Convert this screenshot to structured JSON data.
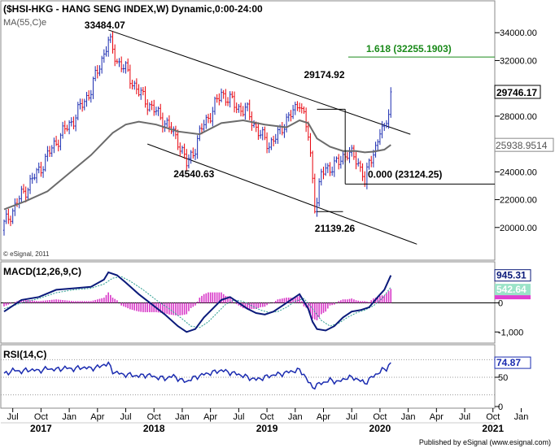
{
  "chart_data": {
    "type": "candlestick",
    "symbol_title": "($HSI-HKG - HANG SENG INDEX,W) Dynamic,0:00-24:00",
    "ma_label": "MA(55,C)e",
    "copyright": "© eSignal, 2011",
    "publisher": "Published by eSignal (www.esignal.com)",
    "price_axis": {
      "min": 18000,
      "max": 36000,
      "ticks": [
        {
          "value": 20000,
          "label": "20000.00"
        },
        {
          "value": 22000,
          "label": "22000.00"
        },
        {
          "value": 24000,
          "label": "24000.00"
        },
        {
          "value": 28000,
          "label": "28000.00"
        },
        {
          "value": 32000,
          "label": "32000.00"
        },
        {
          "value": 34000,
          "label": "34000.00"
        }
      ],
      "current_price": {
        "value": 29746.17,
        "label": "29746.17"
      },
      "ma_value": {
        "value": 25938.9514,
        "label": "25938.9514"
      }
    },
    "x_axis": {
      "months": [
        "Jul",
        "Oct",
        "Jan",
        "Apr",
        "Jul",
        "Oct",
        "Jan",
        "Apr",
        "Jul",
        "Oct",
        "Jan",
        "Apr",
        "Jul",
        "Oct",
        "Jan",
        "Apr",
        "Jul",
        "Oct",
        "Jan"
      ],
      "years": [
        "2017",
        "2018",
        "2019",
        "2020",
        "2021"
      ]
    },
    "annotations": {
      "high_label": "33484.07",
      "mid_high_label": "29174.92",
      "low1_label": "24540.63",
      "low2_label": "21139.26",
      "fib_1618": {
        "value": 32255.1903,
        "label": "1.618 (32255.1903)"
      },
      "fib_0": {
        "value": 23124.25,
        "label": "0.000 (23124.25)"
      }
    },
    "price_series": [
      [
        0,
        20200,
        19800
      ],
      [
        8,
        22300
      ],
      [
        16,
        24100
      ],
      [
        24,
        26200
      ],
      [
        32,
        27800
      ],
      [
        40,
        29900
      ],
      [
        45,
        32100
      ],
      [
        48,
        33484
      ],
      [
        52,
        32000
      ],
      [
        56,
        31300
      ],
      [
        62,
        29700
      ],
      [
        68,
        28600
      ],
      [
        74,
        27600
      ],
      [
        80,
        26300
      ],
      [
        84,
        24540
      ],
      [
        88,
        25800
      ],
      [
        92,
        27500
      ],
      [
        96,
        28400
      ],
      [
        100,
        29700
      ],
      [
        104,
        29100
      ],
      [
        108,
        28600
      ],
      [
        112,
        28300
      ],
      [
        118,
        26600
      ],
      [
        122,
        26000
      ],
      [
        126,
        26600
      ],
      [
        130,
        27800
      ],
      [
        134,
        28400
      ],
      [
        136,
        29175
      ],
      [
        138,
        28000
      ],
      [
        140,
        26500
      ],
      [
        142,
        23500
      ],
      [
        143,
        21139
      ],
      [
        146,
        23800
      ],
      [
        150,
        24400
      ],
      [
        154,
        24600
      ],
      [
        158,
        25500
      ],
      [
        162,
        24800
      ],
      [
        165,
        24100
      ],
      [
        166,
        23124
      ],
      [
        168,
        24500
      ],
      [
        171,
        25800
      ],
      [
        173,
        27000
      ],
      [
        175,
        26800
      ],
      [
        177,
        28500
      ],
      [
        178,
        29746
      ]
    ],
    "ma_series": [
      [
        0,
        21300
      ],
      [
        10,
        21900
      ],
      [
        20,
        22600
      ],
      [
        30,
        23900
      ],
      [
        40,
        25200
      ],
      [
        50,
        26800
      ],
      [
        56,
        27400
      ],
      [
        62,
        27600
      ],
      [
        70,
        27400
      ],
      [
        80,
        26900
      ],
      [
        90,
        26700
      ],
      [
        100,
        27500
      ],
      [
        110,
        27700
      ],
      [
        120,
        27400
      ],
      [
        130,
        27200
      ],
      [
        136,
        27700
      ],
      [
        140,
        27500
      ],
      [
        144,
        26400
      ],
      [
        150,
        25800
      ],
      [
        156,
        25500
      ],
      [
        162,
        25500
      ],
      [
        166,
        25400
      ],
      [
        170,
        25450
      ],
      [
        175,
        25600
      ],
      [
        178,
        25939
      ]
    ],
    "macd": {
      "label": "MACD(12,26,9,C)",
      "min": -1300,
      "max": 1300,
      "ticks": [
        {
          "value": 0,
          "label": "0"
        },
        {
          "value": -1000,
          "label": "-1,000"
        }
      ],
      "macd_value": {
        "value": 945.31,
        "label": "945.31"
      },
      "signal_value": {
        "value": 542.64,
        "label": "542.64"
      },
      "macd_series": [
        [
          0,
          -300
        ],
        [
          8,
          100
        ],
        [
          16,
          200
        ],
        [
          24,
          450
        ],
        [
          32,
          500
        ],
        [
          40,
          550
        ],
        [
          46,
          800
        ],
        [
          48,
          1050
        ],
        [
          52,
          950
        ],
        [
          56,
          700
        ],
        [
          62,
          300
        ],
        [
          68,
          -50
        ],
        [
          74,
          -400
        ],
        [
          80,
          -800
        ],
        [
          84,
          -1000
        ],
        [
          88,
          -900
        ],
        [
          92,
          -500
        ],
        [
          96,
          -200
        ],
        [
          100,
          100
        ],
        [
          104,
          200
        ],
        [
          108,
          0
        ],
        [
          112,
          -200
        ],
        [
          116,
          -350
        ],
        [
          120,
          -400
        ],
        [
          124,
          -300
        ],
        [
          128,
          -100
        ],
        [
          132,
          100
        ],
        [
          136,
          300
        ],
        [
          140,
          -200
        ],
        [
          142,
          -650
        ],
        [
          144,
          -900
        ],
        [
          148,
          -950
        ],
        [
          152,
          -800
        ],
        [
          156,
          -500
        ],
        [
          160,
          -300
        ],
        [
          164,
          -250
        ],
        [
          168,
          -150
        ],
        [
          172,
          200
        ],
        [
          175,
          450
        ],
        [
          178,
          945
        ]
      ],
      "signal_series": [
        [
          0,
          -200
        ],
        [
          8,
          0
        ],
        [
          16,
          150
        ],
        [
          24,
          350
        ],
        [
          32,
          450
        ],
        [
          40,
          500
        ],
        [
          46,
          650
        ],
        [
          50,
          850
        ],
        [
          54,
          900
        ],
        [
          58,
          750
        ],
        [
          64,
          450
        ],
        [
          70,
          100
        ],
        [
          76,
          -200
        ],
        [
          82,
          -550
        ],
        [
          86,
          -800
        ],
        [
          90,
          -850
        ],
        [
          94,
          -650
        ],
        [
          98,
          -350
        ],
        [
          102,
          -50
        ],
        [
          106,
          100
        ],
        [
          110,
          50
        ],
        [
          114,
          -100
        ],
        [
          118,
          -250
        ],
        [
          122,
          -330
        ],
        [
          126,
          -300
        ],
        [
          130,
          -150
        ],
        [
          134,
          50
        ],
        [
          138,
          150
        ],
        [
          142,
          -200
        ],
        [
          146,
          -600
        ],
        [
          150,
          -800
        ],
        [
          154,
          -700
        ],
        [
          158,
          -500
        ],
        [
          162,
          -350
        ],
        [
          166,
          -250
        ],
        [
          170,
          -100
        ],
        [
          174,
          150
        ],
        [
          178,
          543
        ]
      ]
    },
    "rsi": {
      "label": "RSI(14,C)",
      "min": 0,
      "max": 100,
      "ticks": [
        {
          "value": 50,
          "label": "50"
        },
        {
          "value": 0,
          "label": "0"
        }
      ],
      "value": {
        "value": 74.87,
        "label": "74.87"
      },
      "series": [
        [
          0,
          55
        ],
        [
          4,
          62
        ],
        [
          8,
          60
        ],
        [
          12,
          63
        ],
        [
          16,
          61
        ],
        [
          20,
          65
        ],
        [
          24,
          63
        ],
        [
          28,
          66
        ],
        [
          32,
          64
        ],
        [
          36,
          67
        ],
        [
          40,
          65
        ],
        [
          44,
          68
        ],
        [
          46,
          72
        ],
        [
          48,
          73
        ],
        [
          50,
          60
        ],
        [
          52,
          58
        ],
        [
          54,
          55
        ],
        [
          58,
          54
        ],
        [
          62,
          52
        ],
        [
          66,
          54
        ],
        [
          70,
          50
        ],
        [
          74,
          48
        ],
        [
          78,
          52
        ],
        [
          82,
          44
        ],
        [
          84,
          43
        ],
        [
          88,
          50
        ],
        [
          92,
          55
        ],
        [
          96,
          58
        ],
        [
          100,
          62
        ],
        [
          104,
          58
        ],
        [
          108,
          55
        ],
        [
          112,
          50
        ],
        [
          116,
          46
        ],
        [
          120,
          50
        ],
        [
          124,
          54
        ],
        [
          128,
          56
        ],
        [
          132,
          60
        ],
        [
          136,
          62
        ],
        [
          138,
          55
        ],
        [
          140,
          42
        ],
        [
          142,
          33
        ],
        [
          146,
          40
        ],
        [
          150,
          45
        ],
        [
          154,
          42
        ],
        [
          158,
          50
        ],
        [
          162,
          48
        ],
        [
          166,
          40
        ],
        [
          170,
          52
        ],
        [
          174,
          62
        ],
        [
          176,
          65
        ],
        [
          178,
          75
        ]
      ]
    }
  }
}
